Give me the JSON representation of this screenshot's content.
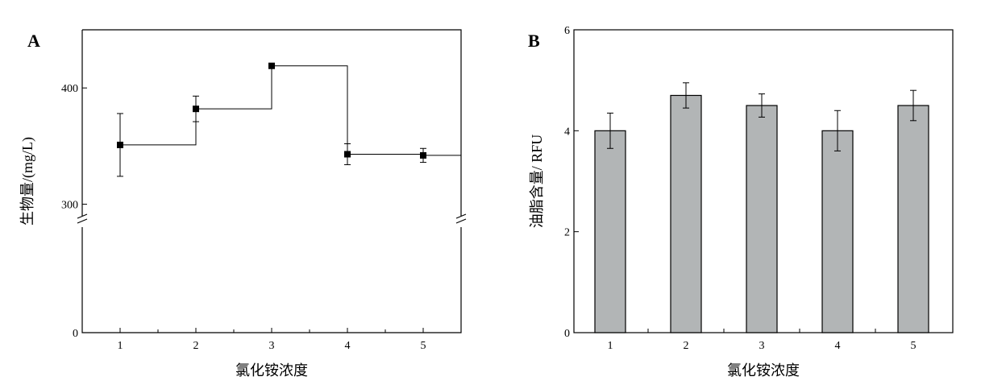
{
  "chart_data": [
    {
      "panel": "A",
      "type": "line",
      "step": true,
      "xlabel": "氯化铵浓度",
      "ylabel": "生物量/(mg/L)",
      "x": [
        1,
        2,
        3,
        4,
        5
      ],
      "x_ticks": [
        "1",
        "2",
        "3",
        "4",
        "5"
      ],
      "y_ticks": [
        "0",
        "300",
        "400"
      ],
      "y_break": true,
      "ylim_lower": [
        0,
        40
      ],
      "ylim_upper": [
        290,
        450
      ],
      "series": [
        {
          "values": [
            351,
            382,
            419,
            343,
            342
          ],
          "errors": [
            27,
            11,
            0,
            9,
            6
          ]
        }
      ]
    },
    {
      "panel": "B",
      "type": "bar",
      "xlabel": "氯化铵浓度",
      "ylabel": "油脂含量/ RFU",
      "categories": [
        "1",
        "2",
        "3",
        "4",
        "5"
      ],
      "y_ticks": [
        "0",
        "2",
        "4",
        "6"
      ],
      "ylim": [
        0,
        6
      ],
      "series": [
        {
          "values": [
            4.0,
            4.7,
            4.5,
            4.0,
            4.5
          ],
          "errors": [
            0.35,
            0.25,
            0.23,
            0.4,
            0.3
          ]
        }
      ]
    }
  ]
}
